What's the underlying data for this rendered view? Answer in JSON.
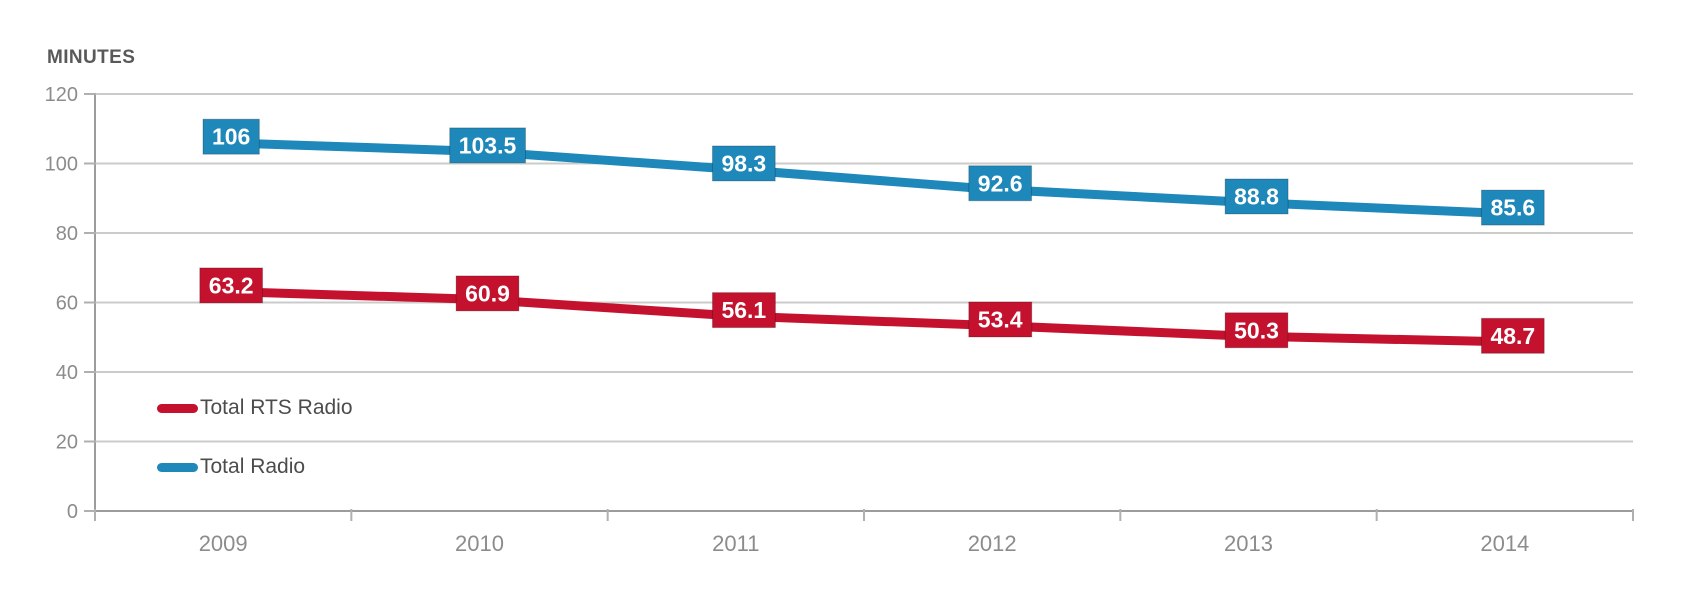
{
  "chart_data": {
    "type": "line",
    "title": "",
    "ylabel": "MINUTES",
    "xlabel": "",
    "categories": [
      "2009",
      "2010",
      "2011",
      "2012",
      "2013",
      "2014"
    ],
    "series": [
      {
        "name": "Total RTS Radio",
        "color": "#c4122e",
        "values": [
          63.2,
          60.9,
          56.1,
          53.4,
          50.3,
          48.7
        ],
        "labels": [
          "63.2",
          "60.9",
          "56.1",
          "53.4",
          "50.3",
          "48.7"
        ]
      },
      {
        "name": "Total Radio",
        "color": "#1e88ba",
        "values": [
          106,
          103.5,
          98.3,
          92.6,
          88.8,
          85.6
        ],
        "labels": [
          "106",
          "103.5",
          "98.3",
          "92.6",
          "88.8",
          "85.6"
        ]
      }
    ],
    "ylim": [
      0,
      120
    ],
    "yticks": [
      0,
      20,
      40,
      60,
      80,
      100,
      120
    ],
    "grid": true,
    "legend_position": "inside-bottom-left",
    "styles": {
      "grid_color": "#cbcbcb",
      "axis_color": "#9c9c9c",
      "tick_color": "#b0b0b0",
      "tick_label_color": "#8c8c8c",
      "point_label_text_color": "#ffffff"
    }
  }
}
